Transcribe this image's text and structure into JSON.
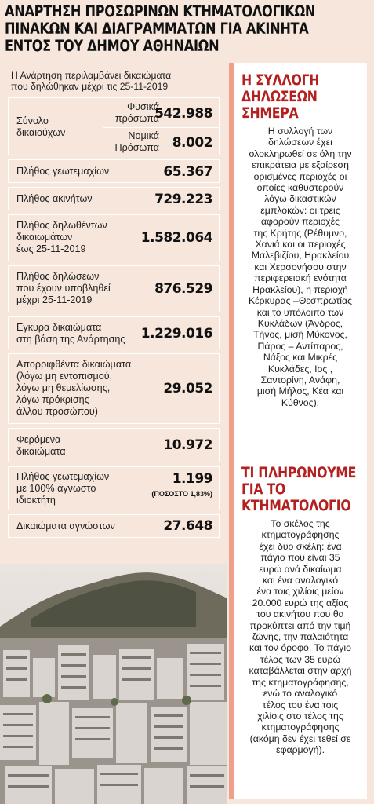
{
  "headline": {
    "line1": "ΑΝΑΡΤΗΣΗ ΠΡΟΣΩΡΙΝΩΝ ΚΤΗΜΑΤΟΛΟΓΙΚΩΝ",
    "line2": "ΠΙΝΑΚΩΝ ΚΑΙ ΔΙΑΓΡΑΜΜΑΤΩΝ ΓΙΑ ΑΚΙΝΗΤΑ",
    "line3": "ΕΝΤΟΣ ΤΟΥ ΔΗΜΟΥ ΑΘΗΝΑΙΩΝ"
  },
  "intro": {
    "line1": "Η Ανάρτηση περιλαμβάνει δικαιώματα",
    "line2": "που δηλώθηκαν μέχρι τις 25-11-2019"
  },
  "stats": {
    "total_label_1": "Σύνολο",
    "total_label_2": "δικαιούχων",
    "natural_label_1": "Φυσικά",
    "natural_label_2": "πρόσωπα",
    "natural_value": "542.988",
    "legal_label_1": "Νομικά",
    "legal_label_2": "Πρόσωπα",
    "legal_value": "8.002",
    "plots_label": "Πλήθος γεωτεμαχίων",
    "plots_value": "65.367",
    "properties_label": "Πλήθος ακινήτων",
    "properties_value": "729.223",
    "declared_rights_label_1": "Πλήθος δηλωθέντων",
    "declared_rights_label_2": "δικαιωμάτων",
    "declared_rights_label_3": "έως 25-11-2019",
    "declared_rights_value": "1.582.064",
    "declarations_label_1": "Πλήθος δηλώσεων",
    "declarations_label_2": "που έχουν υποβληθεί",
    "declarations_label_3": "μέχρι 25-11-2019",
    "declarations_value": "876.529",
    "valid_label_1": "Εγκυρα δικαιώματα",
    "valid_label_2": "στη βάση της Ανάρτησης",
    "valid_value": "1.229.016",
    "rejected_label_1": "Απορριφθέντα δικαιώματα",
    "rejected_label_2": "(λόγω μη εντοπισμού,",
    "rejected_label_3": "λόγω μη θεμελίωσης,",
    "rejected_label_4": "λόγω πρόκρισης",
    "rejected_label_5": "άλλου προσώπου)",
    "rejected_value": "29.052",
    "carried_label_1": "Φερόμενα",
    "carried_label_2": "δικαιώματα",
    "carried_value": "10.972",
    "unknown_owner_label_1": "Πλήθος γεωτεμαχίων",
    "unknown_owner_label_2": "με 100% άγνωστο",
    "unknown_owner_label_3": "ιδιοκτήτη",
    "unknown_owner_value": "1.199",
    "unknown_owner_pct": "(ΠΟΣΟΣΤΟ 1,83%)",
    "unknown_rights_label": "Δικαιώματα αγνώστων",
    "unknown_rights_value": "27.648"
  },
  "sidebar": {
    "h1_line1": "Η ΣΥΛΛΟΓΗ",
    "h1_line2": "ΔΗΛΩΣΕΩΝ",
    "h1_line3": "ΣΗΜΕΡΑ",
    "p1": [
      "Η συλλογή των",
      "δηλώσεων έχει",
      "ολοκληρωθεί σε όλη την",
      "επικράτεια με εξαίρεση",
      "ορισμένες περιοχές οι",
      "οποίες καθυστερούν",
      "λόγω δικαστικών",
      "εμπλοκών: οι τρεις",
      "αφορούν περιοχές",
      "της Κρήτης (Ρέθυμνο,",
      "Χανιά και οι περιοχές",
      "Μαλεβιζίου, Ηρακλείου",
      "και Χερσονήσου στην",
      "περιφερειακή ενότητα",
      "Ηρακλείου), η περιοχή",
      "Κέρκυρας –Θεσπρωτίας",
      "και το υπόλοιπο των",
      "Κυκλάδων (Άνδρος,",
      "Τήνος, μισή Μύκονος,",
      "Πάρος – Αντίπαρος,",
      "Νάξος και Μικρές",
      "Κυκλάδες, Ιος ,",
      "Σαντορίνη, Ανάφη,",
      "μισή Μήλος, Κέα και",
      "Κύθνος)."
    ],
    "h2_line1": "ΤΙ ΠΛΗΡΩΝΟΥΜΕ",
    "h2_line2": "ΓΙΑ ΤΟ",
    "h2_line3": "ΚΤΗΜΑΤΟΛΟΓΙΟ",
    "p2": [
      "Το σκέλος της",
      "κτηματογράφησης",
      "έχει δυο σκέλη: ένα",
      "πάγιο που είναι 35",
      "ευρώ ανά δικαίωμα",
      "και ένα αναλογικό",
      "ένα τοις χιλίοις  μείον",
      "20.000 ευρώ της αξίας",
      "του ακινήτου που θα",
      "προκύπτει από την τιμή",
      "ζώνης, την παλαιότητα",
      "και τον όροφο. Το πάγιο",
      "τέλος των 35 ευρώ",
      "καταβάλλεται στην αρχή",
      "της κτηματογράφησης,",
      "ενώ το αναλογικό",
      "τέλος του ένα τοις",
      "χιλίοις στο τέλος της",
      "κτηματογράφησης",
      "(ακόμη δεν έχει τεθεί σε",
      "εφαρμογή)."
    ]
  }
}
